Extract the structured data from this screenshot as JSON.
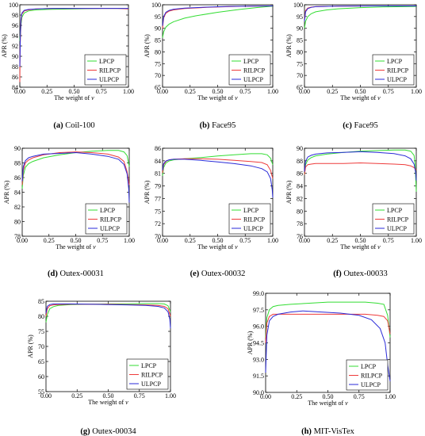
{
  "colors": {
    "LPCP": "#33dd33",
    "RILPCP": "#ee3b3b",
    "ULPCP": "#2a2ad8"
  },
  "chart_data": [
    {
      "type": "line",
      "caption_label": "(a)",
      "caption": " Coil-100",
      "xlabel": "The weight of v",
      "ylabel": "APR (%)",
      "xlim": [
        0,
        1
      ],
      "ylim": [
        84,
        100
      ],
      "xticks": [
        "0.00",
        "0.25",
        "0.50",
        "0.75",
        "1.00"
      ],
      "yticks": [
        "84",
        "86",
        "88",
        "90",
        "92",
        "94",
        "96",
        "98",
        "100"
      ],
      "legend": "bottom-right",
      "series": [
        {
          "name": "LPCP",
          "x": [
            0,
            0.01,
            0.02,
            0.04,
            0.08,
            0.15,
            0.25,
            0.5,
            0.75,
            0.95,
            1.0
          ],
          "y": [
            93,
            96,
            97.6,
            98.4,
            98.8,
            99.0,
            99.1,
            99.2,
            99.3,
            99.3,
            99.2
          ]
        },
        {
          "name": "RILPCP",
          "x": [
            0,
            0.003,
            0.01,
            0.02,
            0.04,
            0.08,
            0.15,
            0.3,
            0.6,
            0.9,
            1.0
          ],
          "y": [
            85,
            92,
            96.5,
            98.2,
            98.8,
            99.0,
            99.2,
            99.3,
            99.3,
            99.3,
            99.2
          ]
        },
        {
          "name": "ULPCP",
          "x": [
            0,
            0.005,
            0.01,
            0.02,
            0.04,
            0.08,
            0.15,
            0.3,
            0.6,
            0.9,
            1.0
          ],
          "y": [
            88,
            94,
            97,
            98.4,
            98.9,
            99.1,
            99.2,
            99.3,
            99.3,
            99.3,
            99.3
          ]
        }
      ]
    },
    {
      "type": "line",
      "caption_label": "(b)",
      "caption": " Face95",
      "xlabel": "The weight of v",
      "ylabel": "APR (%)",
      "xlim": [
        0,
        1
      ],
      "ylim": [
        65,
        100
      ],
      "xticks": [
        "0.00",
        "0.25",
        "0.50",
        "0.75",
        "1.00"
      ],
      "yticks": [
        "65",
        "70",
        "75",
        "80",
        "85",
        "90",
        "95",
        "100"
      ],
      "legend": "bottom-right",
      "series": [
        {
          "name": "LPCP",
          "x": [
            0,
            0.01,
            0.03,
            0.06,
            0.1,
            0.2,
            0.3,
            0.5,
            0.7,
            0.85,
            1.0
          ],
          "y": [
            86,
            88.5,
            90.5,
            91.8,
            92.8,
            94.3,
            95.3,
            96.8,
            98,
            98.8,
            99.4
          ]
        },
        {
          "name": "RILPCP",
          "x": [
            0,
            0.01,
            0.03,
            0.06,
            0.1,
            0.2,
            0.4,
            0.6,
            0.8,
            1.0
          ],
          "y": [
            90,
            94.5,
            96.4,
            97.3,
            97.8,
            98.4,
            98.9,
            99.2,
            99.4,
            99.5
          ]
        },
        {
          "name": "ULPCP",
          "x": [
            0,
            0.01,
            0.03,
            0.06,
            0.1,
            0.2,
            0.4,
            0.6,
            0.8,
            1.0
          ],
          "y": [
            91,
            95,
            96.8,
            97.6,
            98.1,
            98.6,
            99.0,
            99.3,
            99.4,
            99.5
          ]
        }
      ]
    },
    {
      "type": "line",
      "caption_label": "(c)",
      "caption": " Face95",
      "xlabel": "The weight of v",
      "ylabel": "APR (%)",
      "xlim": [
        0,
        1
      ],
      "ylim": [
        65,
        100
      ],
      "xticks": [
        "0.00",
        "0.25",
        "0.50",
        "0.75",
        "1.00"
      ],
      "yticks": [
        "65",
        "70",
        "75",
        "80",
        "85",
        "90",
        "95",
        "100"
      ],
      "legend": "bottom-right",
      "series": [
        {
          "name": "LPCP",
          "x": [
            0,
            0.01,
            0.03,
            0.06,
            0.1,
            0.2,
            0.3,
            0.5,
            0.7,
            1.0
          ],
          "y": [
            90,
            93,
            95,
            96.2,
            97,
            97.8,
            98.3,
            98.8,
            99.1,
            99.3
          ]
        },
        {
          "name": "RILPCP",
          "x": [
            0,
            0.01,
            0.03,
            0.06,
            0.1,
            0.3,
            0.6,
            1.0
          ],
          "y": [
            94,
            97.5,
            98.6,
            99,
            99.2,
            99.4,
            99.5,
            99.5
          ]
        },
        {
          "name": "ULPCP",
          "x": [
            0,
            0.01,
            0.03,
            0.06,
            0.1,
            0.3,
            0.6,
            1.0
          ],
          "y": [
            93,
            97,
            98.4,
            98.9,
            99.2,
            99.4,
            99.5,
            99.5
          ]
        }
      ]
    },
    {
      "type": "line",
      "caption_label": "(d)",
      "caption": " Outex-00031",
      "xlabel": "The weight of v",
      "ylabel": "APR (%)",
      "xlim": [
        0,
        1
      ],
      "ylim": [
        78,
        90
      ],
      "xticks": [
        "0.00",
        "0.25",
        "0.50",
        "0.75",
        "1.00"
      ],
      "yticks": [
        "78",
        "80",
        "82",
        "84",
        "86",
        "88",
        "90"
      ],
      "legend": "bottom-right",
      "series": [
        {
          "name": "LPCP",
          "x": [
            0,
            0.01,
            0.03,
            0.06,
            0.1,
            0.2,
            0.35,
            0.5,
            0.65,
            0.8,
            0.9,
            0.95,
            0.98,
            0.99,
            1.0
          ],
          "y": [
            84.5,
            86.3,
            87.4,
            87.9,
            88.2,
            88.7,
            89.1,
            89.4,
            89.6,
            89.7,
            89.7,
            89.5,
            89.0,
            88.2,
            87.5
          ]
        },
        {
          "name": "RILPCP",
          "x": [
            0,
            0.01,
            0.03,
            0.06,
            0.1,
            0.2,
            0.35,
            0.5,
            0.65,
            0.8,
            0.9,
            0.95,
            0.98,
            1.0
          ],
          "y": [
            85,
            87,
            88,
            88.4,
            88.7,
            89.1,
            89.4,
            89.5,
            89.4,
            89.2,
            88.8,
            88.2,
            86.8,
            85
          ]
        },
        {
          "name": "ULPCP",
          "x": [
            0,
            0.01,
            0.03,
            0.06,
            0.1,
            0.2,
            0.35,
            0.5,
            0.65,
            0.8,
            0.9,
            0.95,
            0.98,
            0.995,
            1.0
          ],
          "y": [
            85.5,
            87.5,
            88.3,
            88.7,
            88.9,
            89.2,
            89.3,
            89.4,
            89.2,
            88.9,
            88.5,
            87.8,
            86.5,
            84.5,
            82.6
          ]
        }
      ]
    },
    {
      "type": "line",
      "caption_label": "(e)",
      "caption": " Outex-00032",
      "xlabel": "The weight of v",
      "ylabel": "APR (%)",
      "xlim": [
        0,
        1
      ],
      "ylim": [
        70,
        86
      ],
      "xticks": [
        "0.00",
        "0.25",
        "0.50",
        "0.75",
        "1.00"
      ],
      "yticks": [
        "70",
        "72",
        "75",
        "77",
        "79",
        "81",
        "84",
        "86"
      ],
      "legend": "bottom-right",
      "series": [
        {
          "name": "LPCP",
          "x": [
            0,
            0.01,
            0.03,
            0.06,
            0.1,
            0.2,
            0.35,
            0.5,
            0.65,
            0.8,
            0.9,
            0.95,
            0.98,
            1.0
          ],
          "y": [
            81,
            82.5,
            83.3,
            83.7,
            83.9,
            84.1,
            84.3,
            84.6,
            84.8,
            85.0,
            85.0,
            84.8,
            84.2,
            83.0
          ]
        },
        {
          "name": "RILPCP",
          "x": [
            0,
            0.01,
            0.03,
            0.06,
            0.1,
            0.2,
            0.35,
            0.5,
            0.65,
            0.8,
            0.9,
            0.95,
            0.98,
            1.0
          ],
          "y": [
            81.5,
            83,
            83.6,
            83.9,
            84.0,
            84.1,
            84.1,
            84.0,
            83.8,
            83.6,
            83.4,
            83.0,
            82.0,
            80.5
          ]
        },
        {
          "name": "ULPCP",
          "x": [
            0,
            0.01,
            0.03,
            0.06,
            0.1,
            0.2,
            0.35,
            0.5,
            0.65,
            0.8,
            0.9,
            0.95,
            0.98,
            0.995,
            1.0
          ],
          "y": [
            82,
            83.2,
            83.7,
            83.9,
            84.0,
            84.0,
            83.8,
            83.5,
            83.2,
            82.8,
            82.3,
            81.7,
            80.5,
            78.5,
            77
          ]
        }
      ]
    },
    {
      "type": "line",
      "caption_label": "(f)",
      "caption": " Outex-00033",
      "xlabel": "The weight of v",
      "ylabel": "APR (%)",
      "xlim": [
        0,
        1
      ],
      "ylim": [
        75,
        90
      ],
      "xticks": [
        "0.00",
        "0.25",
        "0.50",
        "0.75",
        "1.00"
      ],
      "yticks": [
        "76",
        "78",
        "80",
        "82",
        "84",
        "86",
        "88",
        "90"
      ],
      "legend": "bottom-right",
      "series": [
        {
          "name": "LPCP",
          "x": [
            0,
            0.01,
            0.03,
            0.06,
            0.1,
            0.2,
            0.35,
            0.5,
            0.65,
            0.8,
            0.9,
            0.95,
            0.98,
            0.99,
            1.0
          ],
          "y": [
            85.5,
            87.2,
            88.0,
            88.4,
            88.7,
            89.0,
            89.3,
            89.5,
            89.6,
            89.7,
            89.7,
            89.5,
            88.8,
            87.2,
            82.6
          ]
        },
        {
          "name": "RILPCP",
          "x": [
            0,
            0.01,
            0.03,
            0.06,
            0.1,
            0.2,
            0.35,
            0.5,
            0.65,
            0.8,
            0.9,
            0.95,
            0.98,
            1.0
          ],
          "y": [
            85.5,
            86.8,
            87.2,
            87.3,
            87.4,
            87.4,
            87.4,
            87.5,
            87.4,
            87.3,
            87.2,
            87.0,
            86.7,
            86.3
          ]
        },
        {
          "name": "ULPCP",
          "x": [
            0,
            0.01,
            0.03,
            0.06,
            0.1,
            0.2,
            0.35,
            0.5,
            0.65,
            0.8,
            0.9,
            0.95,
            0.98,
            0.995,
            1.0
          ],
          "y": [
            86,
            87.8,
            88.5,
            88.8,
            89.0,
            89.2,
            89.3,
            89.4,
            89.3,
            89.1,
            88.7,
            88.2,
            87.3,
            85.8,
            84.5
          ]
        }
      ]
    },
    {
      "type": "line",
      "caption_label": "(g)",
      "caption": " Outex-00034",
      "xlabel": "The weight of v",
      "ylabel": "APR (%)",
      "xlim": [
        0,
        1
      ],
      "ylim": [
        55,
        85
      ],
      "xticks": [
        "0.00",
        "0.25",
        "0.50",
        "0.75",
        "1.00"
      ],
      "yticks": [
        "55",
        "60",
        "65",
        "70",
        "75",
        "80",
        "85"
      ],
      "legend": "bottom-right",
      "series": [
        {
          "name": "LPCP",
          "x": [
            0,
            0.01,
            0.03,
            0.06,
            0.1,
            0.2,
            0.35,
            0.5,
            0.65,
            0.8,
            0.9,
            0.95,
            0.98,
            1.0
          ],
          "y": [
            78,
            80.5,
            82.5,
            83.2,
            83.6,
            83.9,
            84.0,
            84.1,
            84.1,
            84.2,
            84.2,
            84.1,
            83.5,
            81.5
          ]
        },
        {
          "name": "RILPCP",
          "x": [
            0,
            0.01,
            0.03,
            0.06,
            0.1,
            0.2,
            0.35,
            0.5,
            0.65,
            0.8,
            0.9,
            0.95,
            0.98,
            1.0
          ],
          "y": [
            80,
            82.5,
            83.5,
            83.8,
            83.9,
            84.0,
            84.0,
            84.0,
            83.9,
            83.8,
            83.6,
            83.3,
            82.5,
            80.0
          ]
        },
        {
          "name": "ULPCP",
          "x": [
            0,
            0.01,
            0.03,
            0.06,
            0.1,
            0.2,
            0.35,
            0.5,
            0.65,
            0.8,
            0.9,
            0.95,
            0.98,
            0.995,
            1.0
          ],
          "y": [
            81,
            83.3,
            83.9,
            84.1,
            84.1,
            84.1,
            84.0,
            83.9,
            83.8,
            83.6,
            83.3,
            82.8,
            81.5,
            79,
            76
          ]
        }
      ]
    },
    {
      "type": "line",
      "caption_label": "(h)",
      "caption": " MIT-VisTex",
      "xlabel": "The weight of v",
      "ylabel": "APR (%)",
      "xlim": [
        0,
        1
      ],
      "ylim": [
        90,
        99
      ],
      "xticks": [
        "0.00",
        "0.25",
        "0.50",
        "0.75",
        "1.00"
      ],
      "yticks": [
        "90.0",
        "91.5",
        "93.0",
        "94.5",
        "96.0",
        "97.5",
        "99.0"
      ],
      "legend": "bottom-right",
      "series": [
        {
          "name": "LPCP",
          "x": [
            0,
            0.01,
            0.03,
            0.06,
            0.1,
            0.2,
            0.35,
            0.5,
            0.65,
            0.8,
            0.9,
            0.95,
            0.98,
            1.0
          ],
          "y": [
            95,
            96.8,
            97.5,
            97.8,
            97.9,
            98.0,
            98.1,
            98.2,
            98.2,
            98.2,
            98.1,
            98.0,
            97.0,
            95.0
          ]
        },
        {
          "name": "RILPCP",
          "x": [
            0,
            0.01,
            0.03,
            0.06,
            0.1,
            0.2,
            0.35,
            0.5,
            0.65,
            0.8,
            0.9,
            0.95,
            0.98,
            1.0
          ],
          "y": [
            94.5,
            96.3,
            96.9,
            97.1,
            97.1,
            97.1,
            97.1,
            97.1,
            97.1,
            97.1,
            97.0,
            96.9,
            96.5,
            95.3
          ]
        },
        {
          "name": "ULPCP",
          "x": [
            0,
            0.01,
            0.03,
            0.06,
            0.1,
            0.2,
            0.3,
            0.45,
            0.6,
            0.75,
            0.85,
            0.92,
            0.96,
            0.98,
            1.0
          ],
          "y": [
            91.8,
            95.2,
            96.5,
            96.9,
            97.1,
            97.3,
            97.4,
            97.3,
            97.2,
            97.0,
            96.6,
            95.8,
            94.5,
            92.5,
            91
          ]
        }
      ]
    }
  ]
}
